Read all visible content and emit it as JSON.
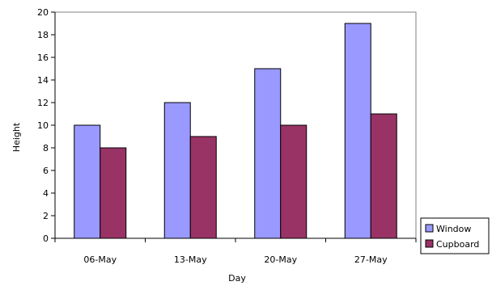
{
  "chart_data": {
    "type": "bar",
    "categories": [
      "06-May",
      "13-May",
      "20-May",
      "27-May"
    ],
    "series": [
      {
        "name": "Window",
        "values": [
          10,
          12,
          15,
          19
        ],
        "color": "#9999ff"
      },
      {
        "name": "Cupboard",
        "values": [
          8,
          9,
          10,
          11
        ],
        "color": "#993366"
      }
    ],
    "xlabel": "Day",
    "ylabel": "Height",
    "ylim": [
      0,
      20
    ],
    "yticks": [
      0,
      2,
      4,
      6,
      8,
      10,
      12,
      14,
      16,
      18,
      20
    ],
    "grid": false,
    "legend": "right"
  }
}
